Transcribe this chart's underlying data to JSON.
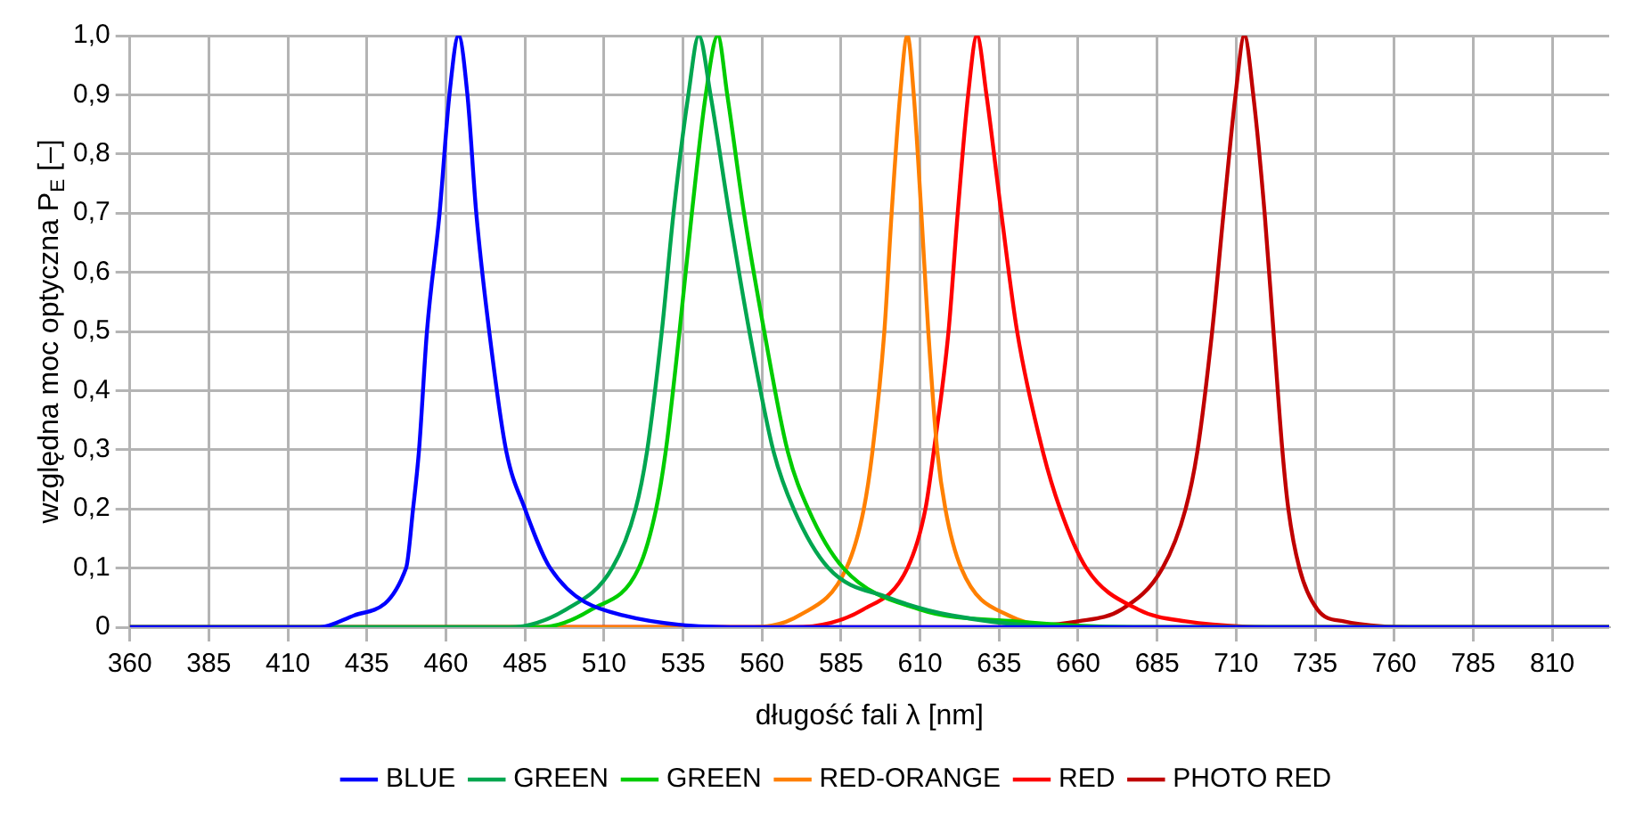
{
  "chart_data": {
    "type": "line",
    "xlabel": "długość fali λ [nm]",
    "ylabel": "względna moc optyczna P$_{E}$ [–]",
    "xlim": [
      360,
      828
    ],
    "xticks": [
      360,
      385,
      410,
      435,
      460,
      485,
      510,
      535,
      560,
      585,
      610,
      635,
      660,
      685,
      710,
      735,
      760,
      785,
      810
    ],
    "ylim": [
      0,
      1
    ],
    "yticks": [
      {
        "value": 0,
        "label": "0"
      },
      {
        "value": 0.1,
        "label": "0,1"
      },
      {
        "value": 0.2,
        "label": "0,2"
      },
      {
        "value": 0.3,
        "label": "0,3"
      },
      {
        "value": 0.4,
        "label": "0,4"
      },
      {
        "value": 0.5,
        "label": "0,5"
      },
      {
        "value": 0.6,
        "label": "0,6"
      },
      {
        "value": 0.7,
        "label": "0,7"
      },
      {
        "value": 0.8,
        "label": "0,8"
      },
      {
        "value": 0.9,
        "label": "0,9"
      },
      {
        "value": 1,
        "label": "1,0"
      }
    ],
    "grid": true,
    "legend": "bottom",
    "marker": "none",
    "line_style": "solid",
    "series": [
      {
        "name": "BLUE",
        "color": "#0000ff",
        "x": [
          360,
          420,
          431,
          447.4,
          449.6,
          451.5,
          454,
          458,
          461.1,
          464,
          466.8,
          469.6,
          473.7,
          479,
          485,
          493,
          516,
          560,
          828
        ],
        "values": [
          0,
          0,
          0.02,
          0.1,
          0.2,
          0.3,
          0.5,
          0.7,
          0.9,
          1,
          0.9,
          0.7,
          0.5,
          0.3,
          0.2,
          0.1,
          0.02,
          0,
          0
        ]
      },
      {
        "name": "GREEN",
        "color": "#00a650",
        "x": [
          360,
          480,
          498,
          512.6,
          520,
          523.7,
          528.3,
          532,
          536.7,
          540,
          543.7,
          549.6,
          556,
          563.5,
          570,
          581,
          600,
          620,
          660,
          828
        ],
        "values": [
          0,
          0,
          0.03,
          0.1,
          0.2,
          0.3,
          0.5,
          0.7,
          0.9,
          1,
          0.9,
          0.7,
          0.5,
          0.3,
          0.2,
          0.1,
          0.05,
          0.02,
          0,
          0
        ]
      },
      {
        "name": "GREEN",
        "color": "#00cc00",
        "x": [
          360,
          490,
          506,
          521,
          526.5,
          529.6,
          533.9,
          537.8,
          542.2,
          546,
          549,
          554.3,
          560.7,
          568,
          574.6,
          585.7,
          610,
          640,
          680,
          828
        ],
        "values": [
          0,
          0,
          0.03,
          0.1,
          0.2,
          0.3,
          0.5,
          0.7,
          0.9,
          1,
          0.9,
          0.7,
          0.5,
          0.3,
          0.2,
          0.1,
          0.03,
          0.01,
          0,
          0
        ]
      },
      {
        "name": "RED-ORANGE",
        "color": "#ff8000",
        "x": [
          360,
          555,
          571.8,
          586.7,
          592.2,
          595,
          598.7,
          601,
          603.7,
          606,
          608,
          610.4,
          612.6,
          615.4,
          618,
          623,
          638,
          660,
          828
        ],
        "values": [
          0,
          0,
          0.02,
          0.1,
          0.2,
          0.3,
          0.5,
          0.7,
          0.9,
          1,
          0.9,
          0.7,
          0.5,
          0.3,
          0.2,
          0.1,
          0.02,
          0,
          0
        ]
      },
      {
        "name": "RED",
        "color": "#ff0000",
        "x": [
          360,
          570,
          592,
          606,
          611.7,
          614.4,
          619,
          621.9,
          625.2,
          628,
          631,
          635.7,
          640.7,
          648.7,
          654.3,
          662.6,
          679,
          694,
          730,
          828
        ],
        "values": [
          0,
          0,
          0.03,
          0.1,
          0.2,
          0.3,
          0.5,
          0.7,
          0.9,
          1,
          0.9,
          0.7,
          0.5,
          0.3,
          0.2,
          0.1,
          0.03,
          0.01,
          0,
          0
        ]
      },
      {
        "name": "PHOTO RED",
        "color": "#c00000",
        "x": [
          360,
          630,
          660,
          673.7,
          686.7,
          694,
          697.8,
          702.4,
          706,
          709.8,
          712.6,
          715.4,
          719,
          721.8,
          724.6,
          726.5,
          730,
          735.7,
          744,
          770,
          828
        ],
        "values": [
          0,
          0,
          0.01,
          0.03,
          0.1,
          0.2,
          0.3,
          0.5,
          0.7,
          0.9,
          1,
          0.9,
          0.7,
          0.5,
          0.3,
          0.2,
          0.1,
          0.03,
          0.01,
          0,
          0
        ]
      }
    ]
  }
}
